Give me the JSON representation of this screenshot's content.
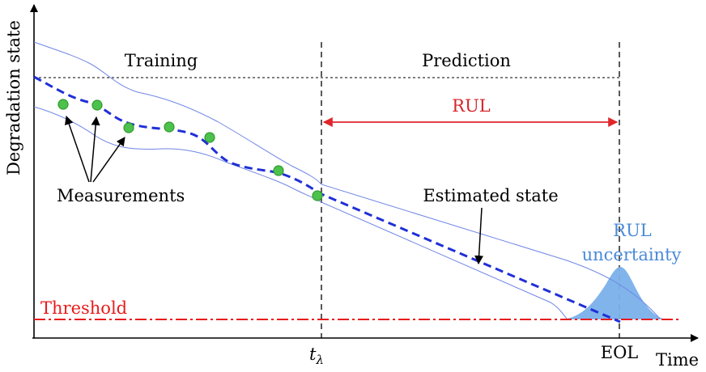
{
  "axes": {
    "x_label": "Time",
    "y_label": "Degradation state"
  },
  "phases": {
    "training": "Training",
    "prediction": "Prediction"
  },
  "annotations": {
    "rul": "RUL",
    "measurements": "Measurements",
    "estimated_state": "Estimated state",
    "rul_uncertainty_line1": "RUL",
    "rul_uncertainty_line2": "uncertainty",
    "threshold": "Threshold"
  },
  "ticks": {
    "t_lambda": "t",
    "t_lambda_sub": "λ",
    "eol": "EOL"
  },
  "colors": {
    "axis": "#000000",
    "estimate": "#1f2fd6",
    "confidence_band": "#6f86e6",
    "measurement": "#4cc24c",
    "threshold": "#e81c1c",
    "rul_arrow": "#e0262b",
    "rul_label": "#d4262b",
    "uncertainty_fill": "#7ab0ea",
    "uncertainty_label": "#4a8ad6"
  }
}
